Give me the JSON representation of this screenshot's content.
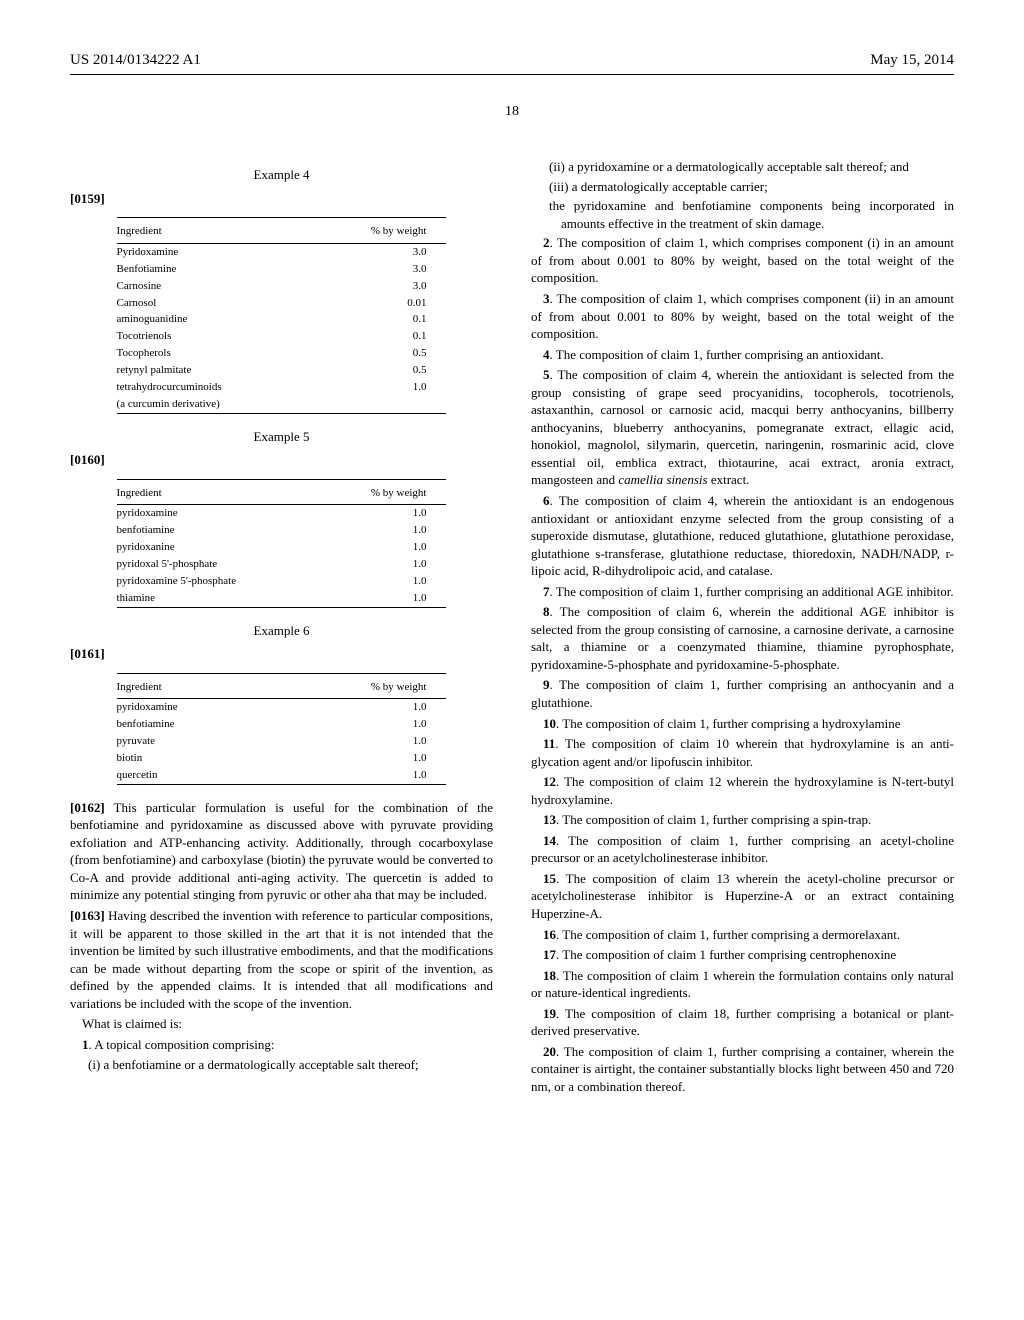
{
  "header": {
    "left": "US 2014/0134222 A1",
    "right": "May 15, 2014"
  },
  "page_number": "18",
  "left": {
    "ex4": {
      "title": "Example 4",
      "para": "[0159]",
      "th1": "Ingredient",
      "th2": "% by weight",
      "rows": [
        [
          "Pyridoxamine",
          "3.0"
        ],
        [
          "Benfotiamine",
          "3.0"
        ],
        [
          "Carnosine",
          "3.0"
        ],
        [
          "Carnosol",
          "0.01"
        ],
        [
          "aminoguanidine",
          "0.1"
        ],
        [
          "Tocotrienols",
          "0.1"
        ],
        [
          "Tocopherols",
          "0.5"
        ],
        [
          "retynyl palmitate",
          "0.5"
        ],
        [
          "tetrahydrocurcuminoids",
          "1.0"
        ],
        [
          "(a curcumin derivative)",
          ""
        ]
      ]
    },
    "ex5": {
      "title": "Example 5",
      "para": "[0160]",
      "th1": "Ingredient",
      "th2": "% by weight",
      "rows": [
        [
          "pyridoxamine",
          "1.0"
        ],
        [
          "benfotiamine",
          "1.0"
        ],
        [
          "pyridoxanine",
          "1.0"
        ],
        [
          "pyridoxal 5'-phosphate",
          "1.0"
        ],
        [
          "pyridoxamine 5'-phosphate",
          "1.0"
        ],
        [
          "thiamine",
          "1.0"
        ]
      ]
    },
    "ex6": {
      "title": "Example 6",
      "para": "[0161]",
      "th1": "Ingredient",
      "th2": "% by weight",
      "rows": [
        [
          "pyridoxamine",
          "1.0"
        ],
        [
          "benfotiamine",
          "1.0"
        ],
        [
          "pyruvate",
          "1.0"
        ],
        [
          "biotin",
          "1.0"
        ],
        [
          "quercetin",
          "1.0"
        ]
      ]
    },
    "p162_num": "[0162]",
    "p162": " This particular formulation is useful for the combination of the benfotiamine and pyridoxamine as discussed above with pyruvate providing exfoliation and ATP-enhancing activity. Additionally, through cocarboxylase (from benfotiamine) and carboxylase (biotin) the pyruvate would be converted to Co-A and provide additional anti-aging activity. The quercetin is added to minimize any potential stinging from pyruvic or other aha that may be included.",
    "p163_num": "[0163]",
    "p163": " Having described the invention with reference to particular compositions, it will be apparent to those skilled in the art that it is not intended that the invention be limited by such illustrative embodiments, and that the modifications can be made without departing from the scope or spirit of the invention, as defined by the appended claims. It is intended that all modifications and variations be included with the scope of the invention.",
    "what_claimed": "What is claimed is:",
    "c1n": "1",
    "c1": ". A topical composition comprising:",
    "c1a": "(i) a benfotiamine or a dermatologically acceptable salt thereof;"
  },
  "right": {
    "c1b": "(ii) a pyridoxamine or a dermatologically acceptable salt thereof; and",
    "c1c": "(iii) a dermatologically acceptable carrier;",
    "c1d": "the pyridoxamine and benfotiamine components being incorporated in amounts effective in the treatment of skin damage.",
    "c2n": "2",
    "c2": ". The composition of claim 1, which comprises component (i) in an amount of from about 0.001 to 80% by weight, based on the total weight of the composition.",
    "c3n": "3",
    "c3": ". The composition of claim 1, which comprises component (ii) in an amount of from about 0.001 to 80% by weight, based on the total weight of the composition.",
    "c4n": "4",
    "c4": ". The composition of claim 1, further comprising an antioxidant.",
    "c5n": "5",
    "c5a": ". The composition of claim 4, wherein the antioxidant is selected from the group consisting of grape seed procyanidins, tocopherols, tocotrienols, astaxanthin, carnosol or carnosic acid, macqui berry anthocyanins, billberry anthocyanins, blueberry anthocyanins, pomegranate extract, ellagic acid, honokiol, magnolol, silymarin, quercetin, naringenin, rosmarinic acid, clove essential oil, emblica extract, thiotaurine, acai extract, aronia extract, mangosteen and ",
    "c5b": "camellia sinensis",
    "c5c": " extract.",
    "c6n": "6",
    "c6": ". The composition of claim 4, wherein the antioxidant is an endogenous antioxidant or antioxidant enzyme selected from the group consisting of a superoxide dismutase, glutathione, reduced glutathione, glutathione peroxidase, glutathione s-transferase, glutathione reductase, thioredoxin, NADH/NADP, r-lipoic acid, R-dihydrolipoic acid, and catalase.",
    "c7n": "7",
    "c7": ". The composition of claim 1, further comprising an additional AGE inhibitor.",
    "c8n": "8",
    "c8": ". The composition of claim 6, wherein the additional AGE inhibitor is selected from the group consisting of carnosine, a carnosine derivate, a carnosine salt, a thiamine or a coenzymated thiamine, thiamine pyrophosphate, pyridoxamine-5-phosphate and pyridoxamine-5-phosphate.",
    "c9n": "9",
    "c9": ". The composition of claim 1, further comprising an anthocyanin and a glutathione.",
    "c10n": "10",
    "c10": ". The composition of claim 1, further comprising a hydroxylamine",
    "c11n": "11",
    "c11": ". The composition of claim 10 wherein that hydroxylamine is an anti-glycation agent and/or lipofuscin inhibitor.",
    "c12n": "12",
    "c12": ". The composition of claim 12 wherein the hydroxylamine is N-tert-butyl hydroxylamine.",
    "c13n": "13",
    "c13": ". The composition of claim 1, further comprising a spin-trap.",
    "c14n": "14",
    "c14": ". The composition of claim 1, further comprising an acetyl-choline precursor or an acetylcholinesterase inhibitor.",
    "c15n": "15",
    "c15": ". The composition of claim 13 wherein the acetyl-choline precursor or acetylcholinesterase inhibitor is Huperzine-A or an extract containing Huperzine-A.",
    "c16n": "16",
    "c16": ". The composition of claim 1, further comprising a dermorelaxant.",
    "c17n": "17",
    "c17": ". The composition of claim 1 further comprising centrophenoxine",
    "c18n": "18",
    "c18": ". The composition of claim 1 wherein the formulation contains only natural or nature-identical ingredients.",
    "c19n": "19",
    "c19": ". The composition of claim 18, further comprising a botanical or plant-derived preservative.",
    "c20n": "20",
    "c20": ". The composition of claim 1, further comprising a container, wherein the container is airtight, the container substantially blocks light between 450 and 720 nm, or a combination thereof."
  }
}
